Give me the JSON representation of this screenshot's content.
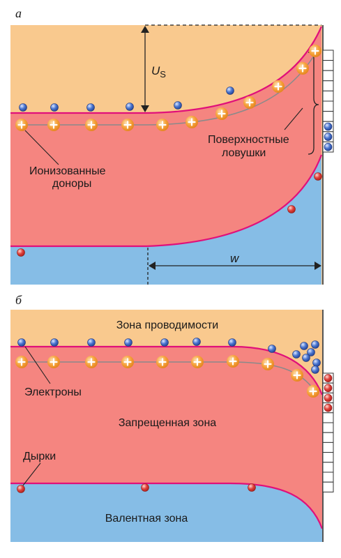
{
  "panel_a": {
    "letter": "а",
    "us_label_main": "U",
    "us_label_sub": "S",
    "w_label": "w",
    "donors_label_line1": "Ионизованные",
    "donors_label_line2": "доноры",
    "traps_label_line1": "Поверхностные",
    "traps_label_line2": "ловушки",
    "donor_sign": "+"
  },
  "panel_b": {
    "letter": "б",
    "conduction_band_label": "Зона проводимости",
    "electrons_label": "Электроны",
    "forbidden_band_label": "Запрещенная зона",
    "holes_label": "Дырки",
    "valence_band_label": "Валентная зона",
    "donor_sign": "+"
  },
  "colors": {
    "conduction_band": "#f9c98e",
    "forbidden_band": "#f58580",
    "valence_band": "#86bde6",
    "band_edge": "#e0107a",
    "donor": "#f6a23c",
    "electron": "#4a76d0",
    "hole": "#e0403a"
  }
}
